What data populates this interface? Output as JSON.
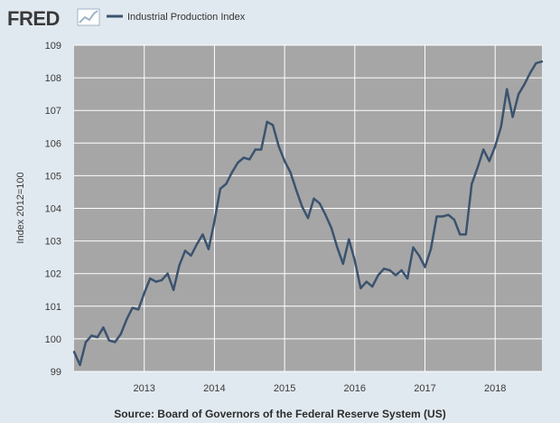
{
  "header": {
    "logo_text": "FRED",
    "logo_icon": "line-chart-icon"
  },
  "colors": {
    "background": "#e1e9f0",
    "plot_background": "#a6a6a6",
    "grid": "#ffffff",
    "series": "#3b536f",
    "logo_accent": "#a0b4c8"
  },
  "chart_data": {
    "type": "line",
    "title": "",
    "xlabel": "",
    "ylabel": "Index 2012=100",
    "source": "Source: Board of Governors of the Federal Reserve System (US)",
    "grid": true,
    "legend": "top-left",
    "xlim": [
      "2012-01",
      "2018-09"
    ],
    "ylim": [
      99,
      109
    ],
    "x_ticks": [
      "2013",
      "2014",
      "2015",
      "2016",
      "2017",
      "2018"
    ],
    "y_ticks": [
      99,
      100,
      101,
      102,
      103,
      104,
      105,
      106,
      107,
      108,
      109
    ],
    "series": [
      {
        "name": "Industrial Production Index",
        "x": [
          "2012-01",
          "2012-02",
          "2012-03",
          "2012-04",
          "2012-05",
          "2012-06",
          "2012-07",
          "2012-08",
          "2012-09",
          "2012-10",
          "2012-11",
          "2012-12",
          "2013-01",
          "2013-02",
          "2013-03",
          "2013-04",
          "2013-05",
          "2013-06",
          "2013-07",
          "2013-08",
          "2013-09",
          "2013-10",
          "2013-11",
          "2013-12",
          "2014-01",
          "2014-02",
          "2014-03",
          "2014-04",
          "2014-05",
          "2014-06",
          "2014-07",
          "2014-08",
          "2014-09",
          "2014-10",
          "2014-11",
          "2014-12",
          "2015-01",
          "2015-02",
          "2015-03",
          "2015-04",
          "2015-05",
          "2015-06",
          "2015-07",
          "2015-08",
          "2015-09",
          "2015-10",
          "2015-11",
          "2015-12",
          "2016-01",
          "2016-02",
          "2016-03",
          "2016-04",
          "2016-05",
          "2016-06",
          "2016-07",
          "2016-08",
          "2016-09",
          "2016-10",
          "2016-11",
          "2016-12",
          "2017-01",
          "2017-02",
          "2017-03",
          "2017-04",
          "2017-05",
          "2017-06",
          "2017-07",
          "2017-08",
          "2017-09",
          "2017-10",
          "2017-11",
          "2017-12",
          "2018-01",
          "2018-02",
          "2018-03",
          "2018-04",
          "2018-05",
          "2018-06",
          "2018-07",
          "2018-08",
          "2018-09"
        ],
        "values": [
          99.6,
          99.2,
          99.9,
          100.1,
          100.05,
          100.35,
          99.95,
          99.9,
          100.15,
          100.6,
          100.95,
          100.9,
          101.4,
          101.85,
          101.75,
          101.8,
          102.0,
          101.5,
          102.25,
          102.7,
          102.55,
          102.9,
          103.2,
          102.75,
          103.6,
          104.6,
          104.75,
          105.1,
          105.4,
          105.55,
          105.5,
          105.8,
          105.8,
          106.65,
          106.55,
          105.9,
          105.45,
          105.1,
          104.55,
          104.05,
          103.7,
          104.3,
          104.15,
          103.8,
          103.4,
          102.8,
          102.3,
          103.05,
          102.4,
          101.55,
          101.75,
          101.6,
          101.95,
          102.15,
          102.1,
          101.95,
          102.1,
          101.85,
          102.8,
          102.55,
          102.2,
          102.75,
          103.75,
          103.75,
          103.8,
          103.65,
          103.2,
          103.2,
          104.75,
          105.25,
          105.8,
          105.45,
          105.9,
          106.5,
          107.65,
          106.8,
          107.5,
          107.8,
          108.15,
          108.45,
          108.5
        ]
      }
    ]
  }
}
